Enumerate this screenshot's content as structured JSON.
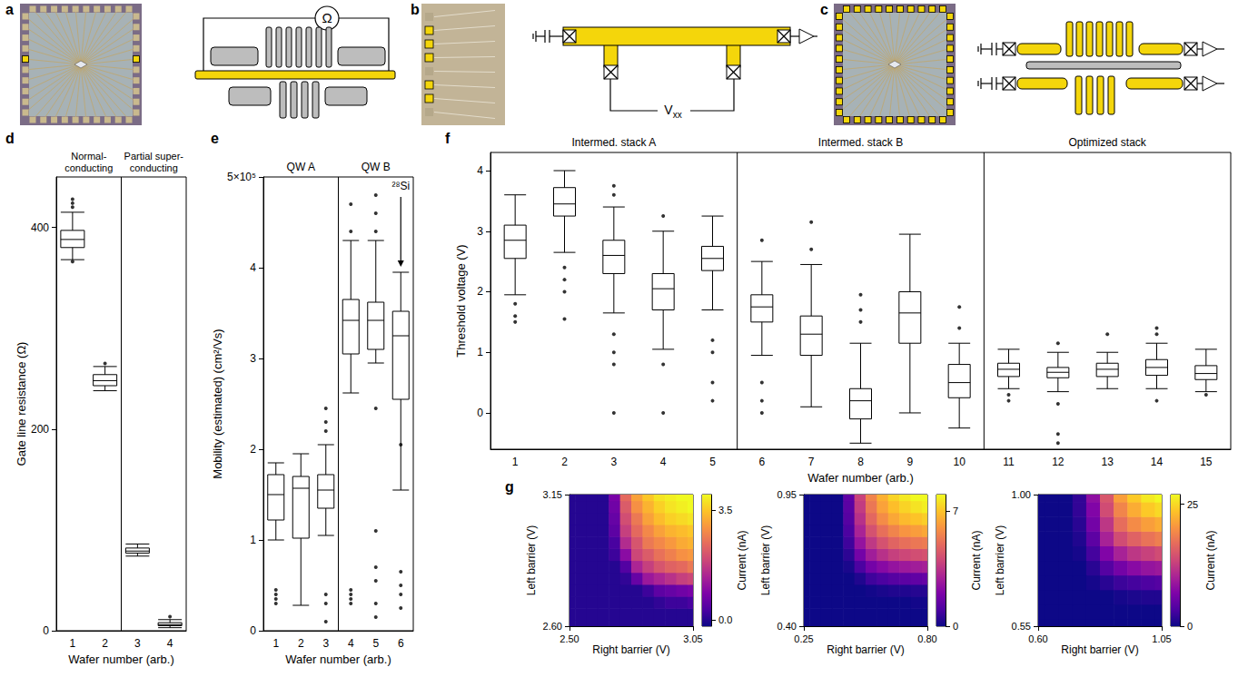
{
  "diagrams": [
    {
      "panel": "a",
      "meter": "Ω"
    },
    {
      "panel": "b",
      "meter": "V",
      "meter_subscript": "xx"
    },
    {
      "panel": "c"
    }
  ],
  "chart_data": [
    {
      "panel": "d",
      "type": "boxplot",
      "categories": [
        "1",
        "2",
        "3",
        "4"
      ],
      "groups": [
        {
          "label": "Normal-conducting",
          "categories": [
            "1",
            "2"
          ]
        },
        {
          "label": "Partial super-conducting",
          "categories": [
            "3",
            "4"
          ]
        }
      ],
      "boxes": [
        {
          "min": 368,
          "q1": 380,
          "median": 388,
          "q3": 397,
          "max": 415,
          "outliers": [
            366,
            420,
            424,
            428
          ]
        },
        {
          "min": 238,
          "q1": 243,
          "median": 248,
          "q3": 254,
          "max": 262,
          "outliers": [
            265
          ]
        },
        {
          "min": 74,
          "q1": 77,
          "median": 79,
          "q3": 82,
          "max": 86,
          "outliers": []
        },
        {
          "min": 3,
          "q1": 5,
          "median": 6,
          "q3": 8,
          "max": 11,
          "outliers": [
            14
          ]
        }
      ],
      "xlabel": "Wafer number (arb.)",
      "ylabel": "Gate line resistance (Ω)",
      "ylim": [
        0,
        450
      ],
      "yticks": [
        0,
        200,
        400
      ],
      "color": "#000000"
    },
    {
      "panel": "e",
      "type": "boxplot",
      "categories": [
        "1",
        "2",
        "3",
        "4",
        "5",
        "6"
      ],
      "groups": [
        {
          "label": "QW A",
          "categories": [
            "1",
            "2",
            "3"
          ]
        },
        {
          "label": "QW B",
          "categories": [
            "4",
            "5",
            "6"
          ]
        }
      ],
      "boxes": [
        {
          "min": 1.0,
          "q1": 1.22,
          "median": 1.5,
          "q3": 1.72,
          "max": 1.85,
          "outliers": [
            0.3,
            0.35,
            0.4,
            0.45
          ]
        },
        {
          "min": 0.28,
          "q1": 1.02,
          "median": 1.57,
          "q3": 1.7,
          "max": 1.95,
          "outliers": []
        },
        {
          "min": 1.05,
          "q1": 1.35,
          "median": 1.55,
          "q3": 1.72,
          "max": 2.05,
          "outliers": [
            0.1,
            0.3,
            0.4,
            2.2,
            2.3,
            2.45
          ]
        },
        {
          "min": 2.62,
          "q1": 3.05,
          "median": 3.42,
          "q3": 3.65,
          "max": 4.3,
          "outliers": [
            0.3,
            0.35,
            0.4,
            0.45,
            4.4,
            4.7
          ]
        },
        {
          "min": 2.95,
          "q1": 3.1,
          "median": 3.42,
          "q3": 3.62,
          "max": 4.3,
          "outliers": [
            0.15,
            0.3,
            0.55,
            0.7,
            1.1,
            2.45,
            4.4,
            4.6,
            4.8
          ]
        },
        {
          "min": 1.55,
          "q1": 2.55,
          "median": 3.25,
          "q3": 3.52,
          "max": 3.95,
          "outliers": [
            0.25,
            0.4,
            0.5,
            0.65,
            2.05
          ]
        }
      ],
      "annotations": [
        {
          "text": "²⁸Si",
          "category": "6"
        }
      ],
      "xlabel": "Wafer number (arb.)",
      "ylabel": "Mobility (estimated) (cm²/Vs)",
      "ylim": [
        0,
        5
      ],
      "yticks": [
        0,
        1,
        2,
        3,
        4,
        {
          "value": 5,
          "label": "5×10⁵"
        }
      ],
      "color": "#000000"
    },
    {
      "panel": "f",
      "type": "boxplot",
      "categories": [
        "1",
        "2",
        "3",
        "4",
        "5",
        "6",
        "7",
        "8",
        "9",
        "10",
        "11",
        "12",
        "13",
        "14",
        "15"
      ],
      "groups": [
        {
          "label": "Intermed. stack A",
          "categories": [
            "1",
            "2",
            "3",
            "4",
            "5"
          ]
        },
        {
          "label": "Intermed. stack B",
          "categories": [
            "6",
            "7",
            "8",
            "9",
            "10"
          ]
        },
        {
          "label": "Optimized stack",
          "categories": [
            "11",
            "12",
            "13",
            "14",
            "15"
          ]
        }
      ],
      "boxes": [
        {
          "min": 1.95,
          "q1": 2.55,
          "median": 2.85,
          "q3": 3.1,
          "max": 3.6,
          "outliers": [
            1.5,
            1.6,
            1.8
          ]
        },
        {
          "min": 2.65,
          "q1": 3.25,
          "median": 3.45,
          "q3": 3.72,
          "max": 4.0,
          "outliers": [
            1.55,
            2.0,
            2.2,
            2.4
          ]
        },
        {
          "min": 1.65,
          "q1": 2.3,
          "median": 2.6,
          "q3": 2.85,
          "max": 3.4,
          "outliers": [
            0.0,
            0.8,
            1.0,
            1.3,
            3.6,
            3.75
          ]
        },
        {
          "min": 1.05,
          "q1": 1.7,
          "median": 2.05,
          "q3": 2.3,
          "max": 3.0,
          "outliers": [
            0.0,
            0.8,
            3.25
          ]
        },
        {
          "min": 1.7,
          "q1": 2.35,
          "median": 2.55,
          "q3": 2.75,
          "max": 3.25,
          "outliers": [
            0.2,
            0.5,
            1.0,
            1.2
          ]
        },
        {
          "min": 0.95,
          "q1": 1.5,
          "median": 1.75,
          "q3": 1.95,
          "max": 2.5,
          "outliers": [
            0.0,
            0.2,
            0.5,
            2.85
          ]
        },
        {
          "min": 0.1,
          "q1": 0.95,
          "median": 1.3,
          "q3": 1.6,
          "max": 2.45,
          "outliers": [
            2.7,
            3.15
          ]
        },
        {
          "min": -0.5,
          "q1": -0.1,
          "median": 0.2,
          "q3": 0.4,
          "max": 1.15,
          "outliers": [
            1.5,
            1.7,
            1.95
          ]
        },
        {
          "min": 0.0,
          "q1": 1.15,
          "median": 1.65,
          "q3": 2.0,
          "max": 2.95,
          "outliers": []
        },
        {
          "min": -0.25,
          "q1": 0.25,
          "median": 0.5,
          "q3": 0.8,
          "max": 1.15,
          "outliers": [
            1.4,
            1.75
          ]
        },
        {
          "min": 0.4,
          "q1": 0.6,
          "median": 0.72,
          "q3": 0.82,
          "max": 1.05,
          "outliers": [
            0.2,
            0.3
          ]
        },
        {
          "min": 0.35,
          "q1": 0.58,
          "median": 0.67,
          "q3": 0.75,
          "max": 1.0,
          "outliers": [
            -0.5,
            -0.35,
            0.15,
            1.15
          ]
        },
        {
          "min": 0.4,
          "q1": 0.6,
          "median": 0.72,
          "q3": 0.82,
          "max": 1.0,
          "outliers": [
            1.3
          ]
        },
        {
          "min": 0.4,
          "q1": 0.62,
          "median": 0.75,
          "q3": 0.88,
          "max": 1.15,
          "outliers": [
            0.2,
            1.3,
            1.4
          ]
        },
        {
          "min": 0.35,
          "q1": 0.55,
          "median": 0.65,
          "q3": 0.78,
          "max": 1.05,
          "outliers": [
            0.3
          ]
        }
      ],
      "xlabel": "Wafer number (arb.)",
      "ylabel": "Threshold voltage (V)",
      "ylim": [
        -0.6,
        4.3
      ],
      "yticks": [
        0,
        1,
        2,
        3,
        4
      ],
      "color": "#000000"
    },
    {
      "panel": "g",
      "type": "heatmap",
      "x": [
        2.5,
        2.55,
        2.6,
        2.65,
        2.7,
        2.75,
        2.8,
        2.85,
        2.9,
        2.95,
        3.0,
        3.05
      ],
      "y": [
        2.6,
        2.65,
        2.7,
        2.75,
        2.8,
        2.85,
        2.9,
        2.95,
        3.0,
        3.05,
        3.1,
        3.15
      ],
      "z": [
        [
          0,
          0,
          0,
          0,
          0,
          0,
          0,
          0,
          0,
          0,
          0,
          0
        ],
        [
          0,
          0,
          0,
          0,
          0,
          0,
          0,
          0,
          0,
          0,
          0,
          0
        ],
        [
          0,
          0,
          0,
          0,
          0,
          0,
          0,
          0,
          0.1,
          0.2,
          0.2,
          0.3
        ],
        [
          0,
          0,
          0,
          0,
          0,
          0,
          0,
          0.2,
          0.5,
          0.6,
          0.7,
          0.8
        ],
        [
          0,
          0,
          0,
          0,
          0,
          0.1,
          0.6,
          1.2,
          1.4,
          1.6,
          1.8,
          1.9
        ],
        [
          0,
          0,
          0,
          0,
          0,
          0.4,
          1.4,
          1.8,
          2.1,
          2.3,
          2.4,
          2.6
        ],
        [
          0,
          0,
          0,
          0,
          0.2,
          1.0,
          1.9,
          2.2,
          2.5,
          2.7,
          2.9,
          3.0
        ],
        [
          0,
          0,
          0,
          0,
          0.3,
          1.5,
          2.1,
          2.6,
          2.8,
          3.0,
          3.2,
          3.3
        ],
        [
          0,
          0,
          0,
          0,
          0.5,
          1.8,
          2.4,
          2.8,
          3.1,
          3.3,
          3.4,
          3.5
        ],
        [
          0,
          0,
          0,
          0,
          0.6,
          2.0,
          2.6,
          3.1,
          3.4,
          3.6,
          3.7,
          3.8
        ],
        [
          0,
          0,
          0,
          0,
          0.7,
          2.2,
          2.9,
          3.3,
          3.6,
          3.8,
          3.9,
          4.0
        ],
        [
          0,
          0,
          0,
          0,
          0.8,
          2.4,
          3.1,
          3.5,
          3.8,
          3.9,
          4.0,
          4.0
        ]
      ],
      "xlim": [
        2.5,
        3.05
      ],
      "xticks": [
        {
          "value": 2.5,
          "label": "2.50"
        },
        3.05
      ],
      "ylim": [
        2.6,
        3.15
      ],
      "yticks": [
        {
          "value": 2.6,
          "label": "2.60"
        },
        3.15
      ],
      "xlabel": "Right barrier (V)",
      "ylabel": "Left barrier (V)",
      "colorbar": {
        "range": [
          -0.2,
          4.0
        ],
        "ticks": [
          {
            "value": 0,
            "label": "0.0"
          },
          3.5
        ],
        "label": "Current (nA)"
      }
    },
    {
      "type": "heatmap",
      "x": [
        0.25,
        0.3,
        0.35,
        0.4,
        0.45,
        0.5,
        0.55,
        0.6,
        0.65,
        0.7,
        0.75,
        0.8
      ],
      "y": [
        0.4,
        0.45,
        0.5,
        0.55,
        0.6,
        0.65,
        0.7,
        0.75,
        0.8,
        0.85,
        0.9,
        0.95
      ],
      "z": [
        [
          0,
          0,
          0,
          0,
          0,
          0,
          0,
          0,
          0,
          0,
          0,
          0
        ],
        [
          0,
          0,
          0,
          0,
          0,
          0,
          0,
          0,
          0,
          0,
          0,
          0
        ],
        [
          0,
          0,
          0,
          0,
          0,
          0,
          0,
          0,
          0,
          0,
          0.1,
          0.1
        ],
        [
          0,
          0,
          0,
          0,
          0,
          0,
          0.1,
          0.2,
          0.3,
          0.3,
          0.4,
          0.4
        ],
        [
          0,
          0,
          0,
          0,
          0,
          0.3,
          0.8,
          1.0,
          1.2,
          1.3,
          1.4,
          1.5
        ],
        [
          0,
          0,
          0,
          0,
          0.2,
          1.0,
          1.8,
          2.2,
          2.5,
          2.7,
          2.8,
          2.9
        ],
        [
          0,
          0,
          0,
          0,
          0.5,
          1.8,
          2.8,
          3.4,
          3.8,
          4.0,
          4.2,
          4.3
        ],
        [
          0,
          0,
          0,
          0,
          0.8,
          2.5,
          3.6,
          4.3,
          4.8,
          5.1,
          5.3,
          5.4
        ],
        [
          0,
          0,
          0,
          0,
          1.0,
          3.0,
          4.3,
          5.1,
          5.6,
          6.0,
          6.2,
          6.4
        ],
        [
          0,
          0,
          0,
          0,
          1.2,
          3.4,
          4.9,
          5.8,
          6.4,
          6.8,
          7.0,
          7.2
        ],
        [
          0,
          0,
          0,
          0,
          1.3,
          3.7,
          5.3,
          6.3,
          6.9,
          7.3,
          7.6,
          7.8
        ],
        [
          0,
          0,
          0,
          0,
          1.4,
          3.9,
          5.6,
          6.6,
          7.3,
          7.7,
          8.0,
          8.0
        ]
      ],
      "xlim": [
        0.25,
        0.8
      ],
      "xticks": [
        0.25,
        {
          "value": 0.8,
          "label": "0.80"
        }
      ],
      "ylim": [
        0.4,
        0.95
      ],
      "yticks": [
        {
          "value": 0.4,
          "label": "0.40"
        },
        0.95
      ],
      "xlabel": "Right barrier (V)",
      "ylabel": "Left barrier (V)",
      "colorbar": {
        "range": [
          0,
          8
        ],
        "ticks": [
          0,
          7
        ],
        "label": "Current (nA)"
      }
    },
    {
      "type": "heatmap",
      "x": [
        0.6,
        0.65,
        0.7,
        0.75,
        0.8,
        0.85,
        0.9,
        0.95,
        1.0,
        1.05
      ],
      "y": [
        0.55,
        0.6,
        0.65,
        0.7,
        0.75,
        0.8,
        0.85,
        0.9,
        0.95,
        1.0
      ],
      "z": [
        [
          0,
          0,
          0,
          0,
          0,
          0,
          0,
          0,
          0,
          0
        ],
        [
          0,
          0,
          0,
          0,
          0,
          0,
          0,
          0,
          0,
          0
        ],
        [
          0,
          0,
          0,
          0,
          0,
          0,
          0.5,
          0.8,
          1,
          1
        ],
        [
          0,
          0,
          0,
          0,
          0.5,
          1.5,
          2.5,
          3,
          3.5,
          4
        ],
        [
          0,
          0,
          0,
          0,
          1.5,
          4,
          6,
          7.5,
          8.5,
          9
        ],
        [
          0,
          0,
          0,
          0.5,
          3,
          7,
          10,
          12,
          13,
          14
        ],
        [
          0,
          0,
          0,
          1,
          4.5,
          10,
          14,
          16,
          17.5,
          18.5
        ],
        [
          0,
          0,
          0,
          1.5,
          6,
          12,
          17,
          19.5,
          21,
          22
        ],
        [
          0,
          0,
          0,
          2,
          7,
          14,
          19,
          22,
          24,
          25
        ],
        [
          0,
          0,
          0,
          2,
          8,
          15,
          21,
          24,
          26,
          27
        ]
      ],
      "xlim": [
        0.6,
        1.05
      ],
      "xticks": [
        {
          "value": 0.6,
          "label": "0.60"
        },
        1.05
      ],
      "ylim": [
        0.55,
        1.0
      ],
      "yticks": [
        0.55,
        {
          "value": 1.0,
          "label": "1.00"
        }
      ],
      "xlabel": "Right barrier (V)",
      "ylabel": "Left barrier (V)",
      "colorbar": {
        "range": [
          0,
          27
        ],
        "ticks": [
          0,
          25
        ],
        "label": "Current (nA)"
      }
    }
  ]
}
